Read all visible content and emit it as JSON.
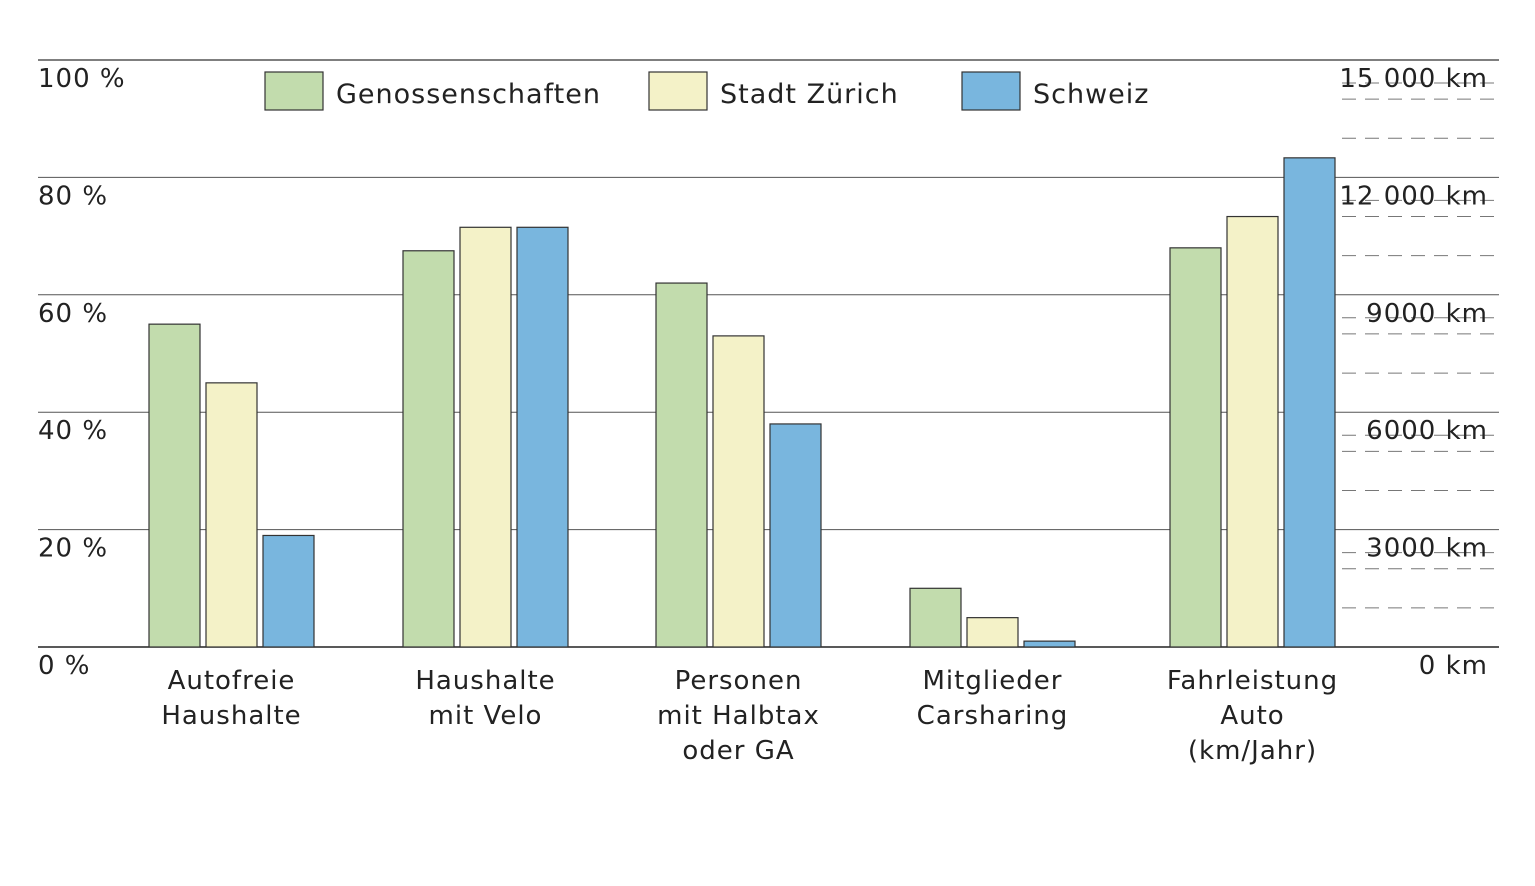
{
  "chart_data": {
    "type": "bar",
    "title": "",
    "categories": [
      [
        "Autofreie",
        "Haushalte"
      ],
      [
        "Haushalte",
        "mit Velo"
      ],
      [
        "Personen",
        "mit Halbtax",
        "oder GA"
      ],
      [
        "Mitglieder",
        "Carsharing"
      ],
      [
        "Fahrleistung",
        "Auto",
        "(km/Jahr)"
      ]
    ],
    "series": [
      {
        "name": "Genossenschaften",
        "color": "#c2dcad",
        "values": [
          55,
          67.5,
          62,
          10,
          10200
        ]
      },
      {
        "name": "Stadt Zürich",
        "color": "#f4f2c8",
        "values": [
          45,
          71.5,
          53,
          5,
          11000
        ]
      },
      {
        "name": "Schweiz",
        "color": "#79b6de",
        "values": [
          19,
          71.5,
          38,
          1,
          12500
        ]
      }
    ],
    "value_axis_per_category": [
      "left",
      "left",
      "left",
      "left",
      "right"
    ],
    "left_axis": {
      "ticks": [
        "0 %",
        "20 %",
        "40 %",
        "60 %",
        "80 %",
        "100 %"
      ],
      "ylim": [
        0,
        100
      ]
    },
    "right_axis": {
      "ticks": [
        "0 km",
        "3000 km",
        "6000 km",
        "9000 km",
        "12 000 km",
        "15 000 km"
      ],
      "ylim": [
        0,
        15000
      ],
      "minor_step": 1000
    },
    "grid": true,
    "legend_position": "top"
  }
}
